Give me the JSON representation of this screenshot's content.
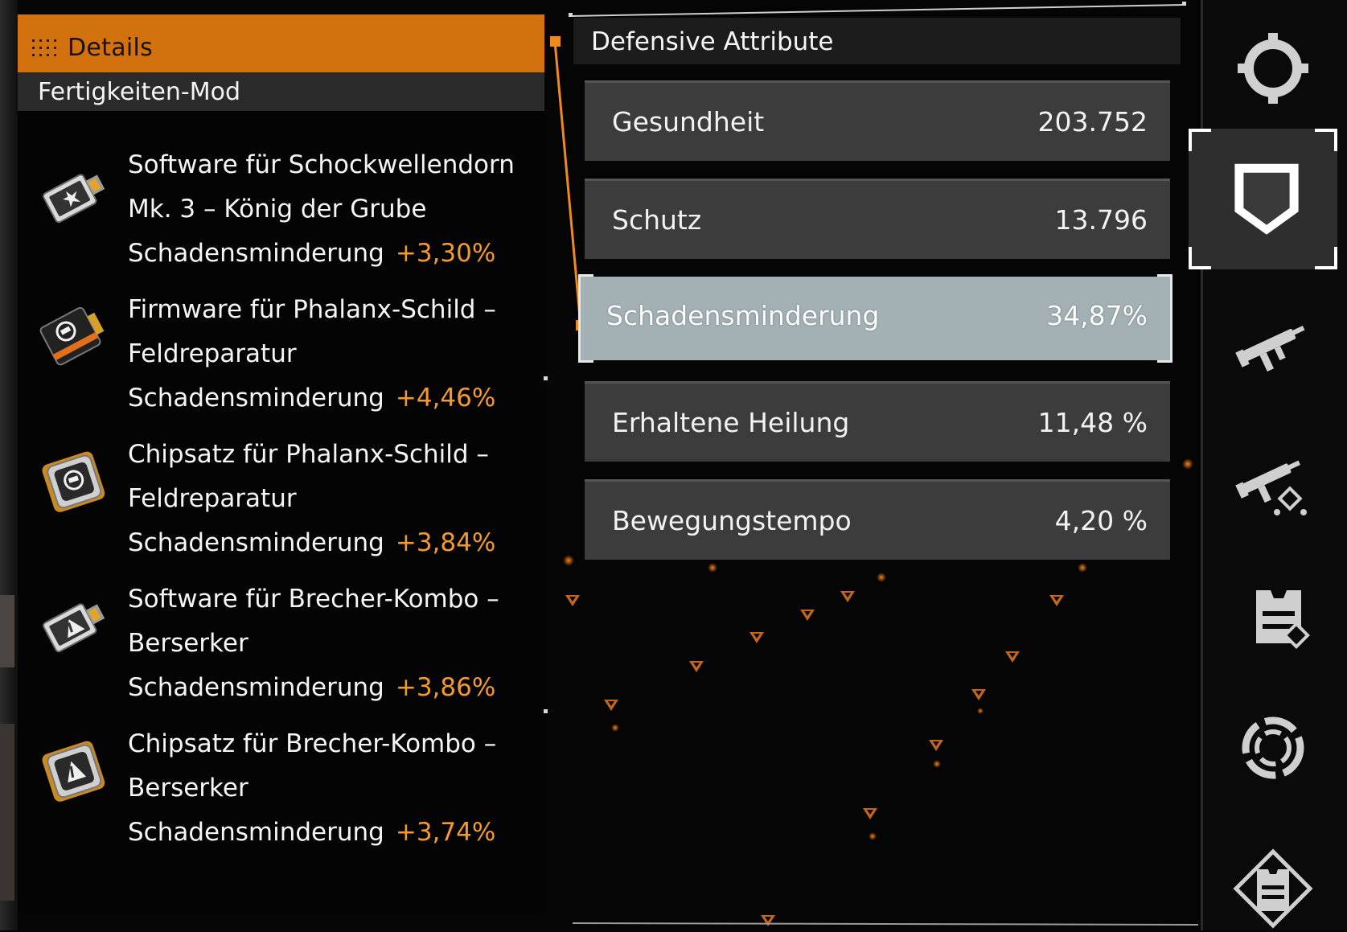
{
  "details": {
    "header_title": "Details",
    "subheader": "Fertigkeiten-Mod",
    "mods": [
      {
        "name_lines": [
          "Software für Schockwellendorn",
          "Mk. 3 – König der Grube"
        ],
        "stat_label": "Schadensminderung",
        "stat_value": "+3,30%",
        "icon": "software-usb-icon"
      },
      {
        "name_lines": [
          "Firmware für Phalanx-Schild –",
          "Feldreparatur"
        ],
        "stat_label": "Schadensminderung",
        "stat_value": "+4,46%",
        "icon": "firmware-card-icon"
      },
      {
        "name_lines": [
          "Chipsatz für Phalanx-Schild –",
          "Feldreparatur"
        ],
        "stat_label": "Schadensminderung",
        "stat_value": "+3,84%",
        "icon": "chipset-icon"
      },
      {
        "name_lines": [
          "Software für Brecher-Kombo –",
          "Berserker"
        ],
        "stat_label": "Schadensminderung",
        "stat_value": "+3,86%",
        "icon": "software-usb-icon"
      },
      {
        "name_lines": [
          "Chipsatz für Brecher-Kombo –",
          "Berserker"
        ],
        "stat_label": "Schadensminderung",
        "stat_value": "+3,74%",
        "icon": "chipset-icon"
      }
    ]
  },
  "attributes": {
    "title": "Defensive Attribute",
    "rows": [
      {
        "label": "Gesundheit",
        "value": "203.752"
      },
      {
        "label": "Schutz",
        "value": "13.796"
      },
      {
        "label": "Schadensminderung",
        "value": "34,87%",
        "selected": true
      },
      {
        "label": "Erhaltene Heilung",
        "value": "11,48 %"
      },
      {
        "label": "Bewegungstempo",
        "value": "4,20 %"
      }
    ]
  },
  "nav": {
    "items": [
      "overview-ring-icon",
      "shield-icon",
      "smg-icon",
      "weapon-mods-icon",
      "armor-mods-icon",
      "skills-icon",
      "gear-icon"
    ],
    "active_index": 1
  },
  "colors": {
    "accent": "#d1720f",
    "stat_value": "#f39a2c",
    "selected_row": "#a3b1b4",
    "row": "#3c3c3c"
  }
}
